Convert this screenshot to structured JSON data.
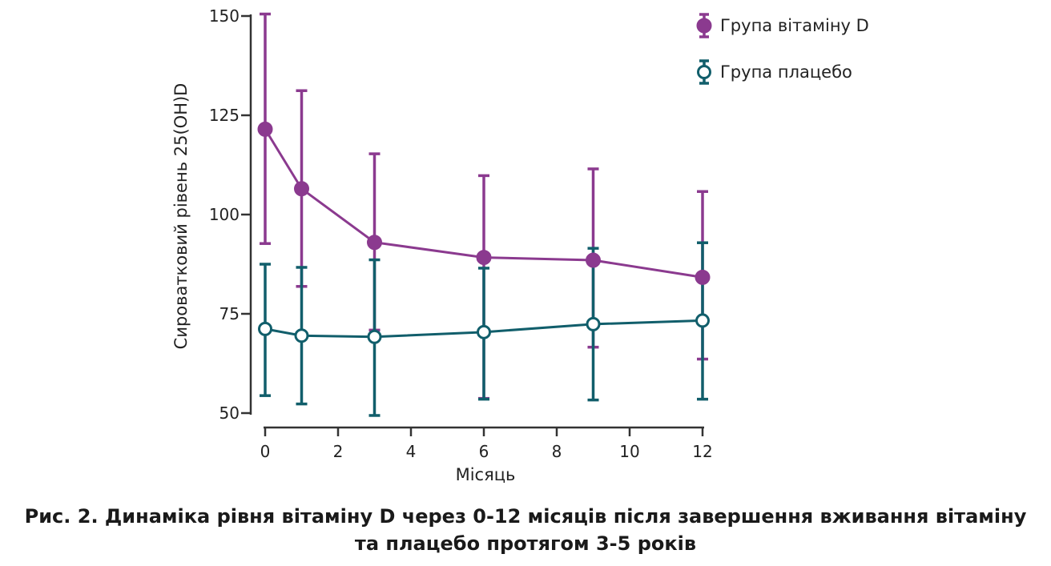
{
  "chart_data": {
    "type": "line",
    "title": "",
    "xlabel": "Місяць",
    "ylabel": "Сироватковий рівень 25(OH)D",
    "xlim": [
      0,
      12
    ],
    "ylim": [
      50,
      150
    ],
    "xticks": [
      0,
      2,
      4,
      6,
      8,
      10,
      12
    ],
    "yticks": [
      50,
      75,
      100,
      125,
      150
    ],
    "x": [
      0,
      1,
      3,
      6,
      9,
      12
    ],
    "series": [
      {
        "name": "Група вітаміну D",
        "color": "#8B3A8F",
        "marker": "filled-circle",
        "values": [
          121.5,
          106.5,
          93,
          89.2,
          88.5,
          84.2
        ],
        "err_low": [
          92.7,
          81.9,
          70.9,
          53.7,
          66.6,
          63.6
        ],
        "err_high": [
          150.5,
          131.2,
          115.3,
          109.8,
          111.5,
          105.8
        ]
      },
      {
        "name": "Група плацебо",
        "color": "#115E6B",
        "marker": "open-circle",
        "values": [
          71.2,
          69.5,
          69.2,
          70.4,
          72.4,
          73.3
        ],
        "err_low": [
          54.4,
          52.3,
          49.4,
          53.5,
          53.3,
          53.5
        ],
        "err_high": [
          87.5,
          86.7,
          88.6,
          86.5,
          91.5,
          92.9
        ]
      }
    ],
    "legend": {
      "position": "top-right"
    }
  },
  "caption": {
    "line1": "Рис. 2. Динаміка рівня вітаміну D через 0-12 місяців після завершення вживання вітаміну",
    "line2": "та плацебо протягом 3-5 років"
  }
}
